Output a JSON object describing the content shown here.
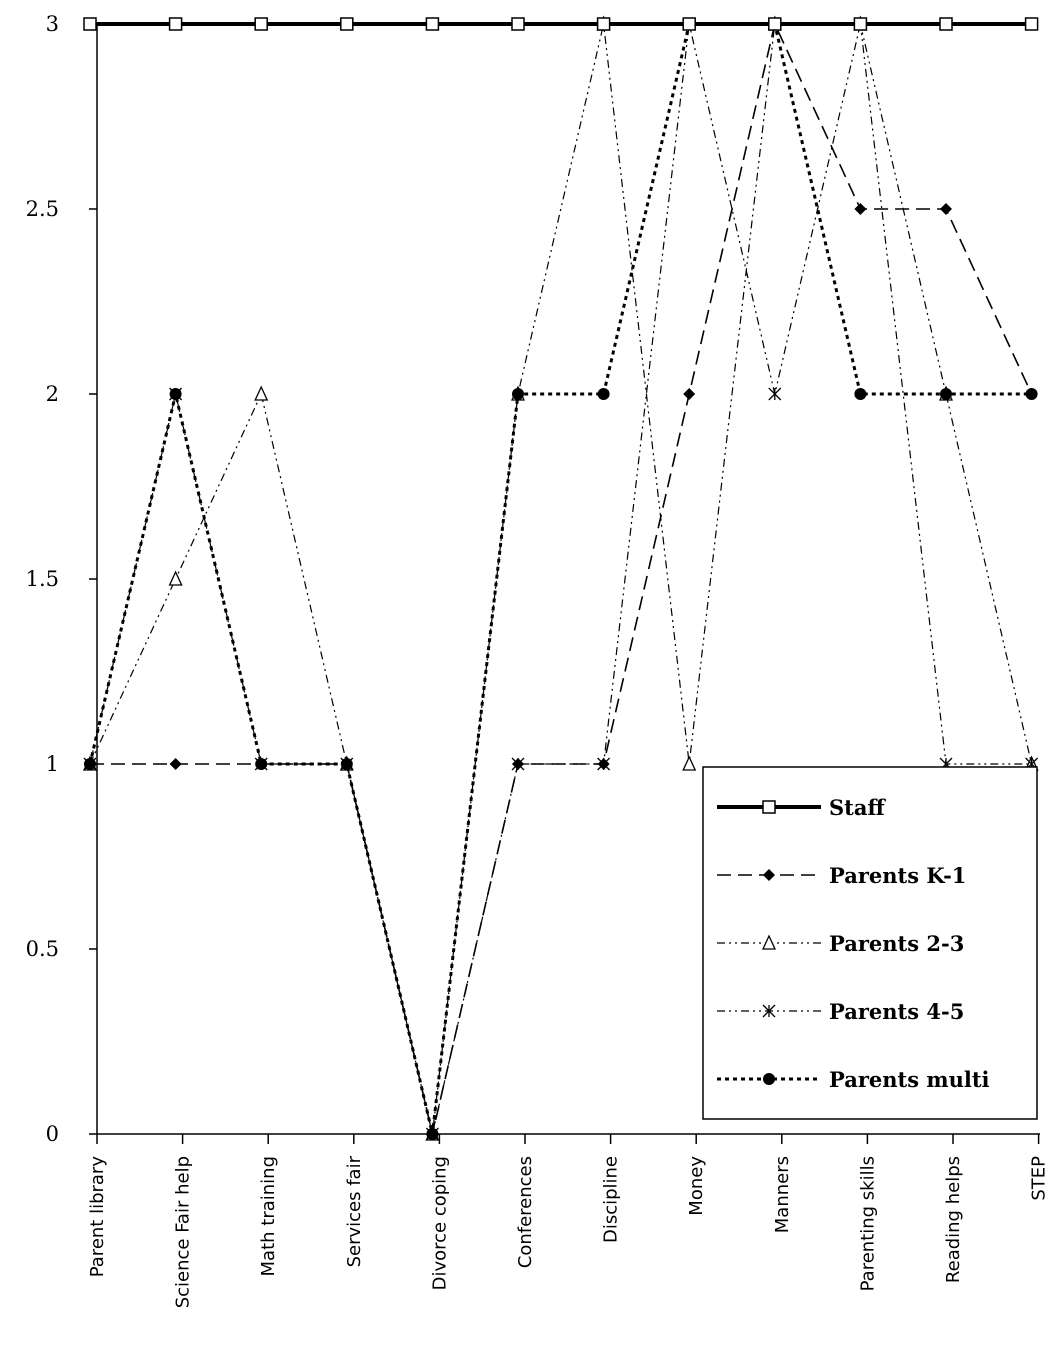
{
  "chart_data": {
    "type": "line",
    "title": "",
    "xlabel": "",
    "ylabel": "",
    "ylim": [
      0,
      3
    ],
    "yticks": [
      "0",
      "0.5",
      "1",
      "1.5",
      "2",
      "2.5",
      "3"
    ],
    "categories": [
      "Parent library",
      "Science Fair help",
      "Math training",
      "Services fair",
      "Divorce coping",
      "Conferences",
      "Discipline",
      "Money",
      "Manners",
      "Parenting skills",
      "Reading helps",
      "STEP"
    ],
    "grid": false,
    "legend_position": "bottom-right",
    "series": [
      {
        "name": "Staff",
        "style": "solid-thick",
        "marker": "open-square",
        "color": "#000000",
        "values": [
          3,
          3,
          3,
          3,
          3,
          3,
          3,
          3,
          3,
          3,
          3,
          3
        ]
      },
      {
        "name": "Parents K-1",
        "style": "long-dash",
        "marker": "filled-diamond",
        "color": "#000000",
        "values": [
          1,
          1,
          1,
          1,
          0,
          1,
          1,
          2,
          3,
          2.5,
          2.5,
          2
        ]
      },
      {
        "name": "Parents 2-3",
        "style": "dash-dot-dot",
        "marker": "open-triangle",
        "color": "#000000",
        "values": [
          1,
          1.5,
          2,
          1,
          0,
          2,
          3,
          1,
          3,
          3,
          2,
          1
        ]
      },
      {
        "name": "Parents 4-5",
        "style": "dash-dot-dot",
        "marker": "asterisk",
        "color": "#000000",
        "values": [
          1,
          2,
          1,
          1,
          0,
          1,
          1,
          3,
          2,
          3,
          1,
          1
        ]
      },
      {
        "name": "Parents multi",
        "style": "dotted",
        "marker": "filled-circle",
        "color": "#000000",
        "values": [
          1,
          2,
          1,
          1,
          0,
          2,
          2,
          3,
          3,
          2,
          2,
          2
        ]
      }
    ]
  }
}
